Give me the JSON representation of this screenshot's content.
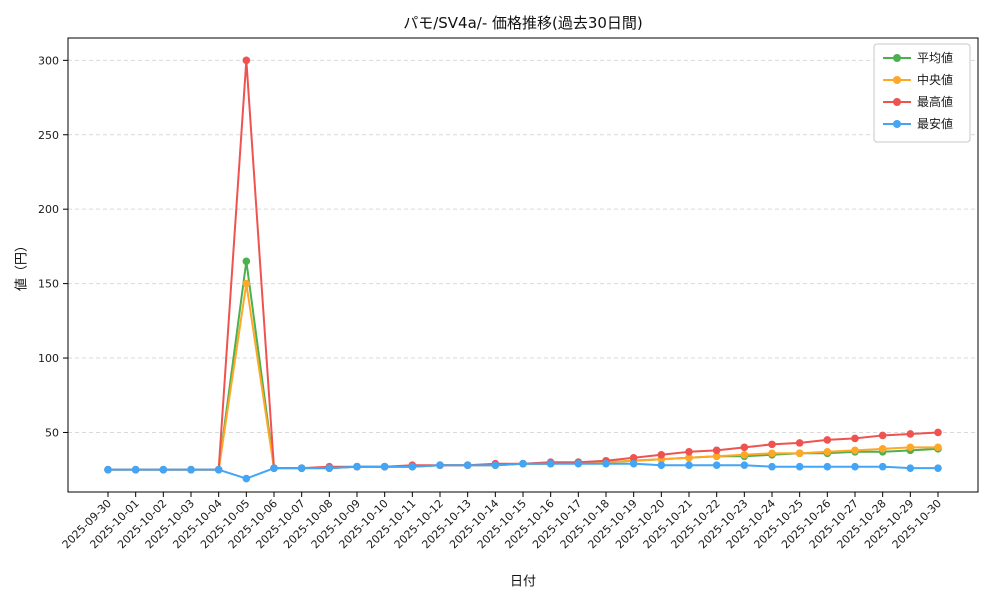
{
  "chart_data": {
    "type": "line",
    "title": "パモ/SV4a/- 価格推移(過去30日間)",
    "xlabel": "日付",
    "ylabel": "値（円）",
    "categories": [
      "2025-09-30",
      "2025-10-01",
      "2025-10-02",
      "2025-10-03",
      "2025-10-04",
      "2025-10-05",
      "2025-10-06",
      "2025-10-07",
      "2025-10-08",
      "2025-10-09",
      "2025-10-10",
      "2025-10-11",
      "2025-10-12",
      "2025-10-13",
      "2025-10-14",
      "2025-10-15",
      "2025-10-16",
      "2025-10-17",
      "2025-10-18",
      "2025-10-19",
      "2025-10-20",
      "2025-10-21",
      "2025-10-22",
      "2025-10-23",
      "2025-10-24",
      "2025-10-25",
      "2025-10-26",
      "2025-10-27",
      "2025-10-28",
      "2025-10-29",
      "2025-10-30"
    ],
    "series": [
      {
        "name": "平均値",
        "color": "#4caf50",
        "values": [
          25,
          25,
          25,
          25,
          25,
          165,
          26,
          26,
          26,
          27,
          27,
          27,
          28,
          28,
          28,
          29,
          29,
          30,
          30,
          31,
          32,
          33,
          34,
          34,
          35,
          36,
          36,
          37,
          37,
          38,
          39
        ]
      },
      {
        "name": "中央値",
        "color": "#ffa726",
        "values": [
          25,
          25,
          25,
          25,
          25,
          150,
          26,
          26,
          26,
          27,
          27,
          27,
          28,
          28,
          28,
          29,
          29,
          30,
          30,
          31,
          32,
          33,
          34,
          35,
          36,
          36,
          37,
          38,
          39,
          40,
          40
        ]
      },
      {
        "name": "最高値",
        "color": "#ef5350",
        "values": [
          25,
          25,
          25,
          25,
          25,
          300,
          26,
          26,
          27,
          27,
          27,
          28,
          28,
          28,
          29,
          29,
          30,
          30,
          31,
          33,
          35,
          37,
          38,
          40,
          42,
          43,
          45,
          46,
          48,
          49,
          50
        ]
      },
      {
        "name": "最安値",
        "color": "#42a5f5",
        "values": [
          25,
          25,
          25,
          25,
          25,
          19,
          26,
          26,
          26,
          27,
          27,
          27,
          28,
          28,
          28,
          29,
          29,
          29,
          29,
          29,
          28,
          28,
          28,
          28,
          27,
          27,
          27,
          27,
          27,
          26,
          26
        ]
      }
    ],
    "ylim": [
      10,
      315
    ],
    "yticks": [
      50,
      100,
      150,
      200,
      250,
      300
    ],
    "grid": "horizontal-dashed",
    "grid_color": "#d9d9d9",
    "legend_position": "top-right",
    "frame_color": "#000000"
  }
}
